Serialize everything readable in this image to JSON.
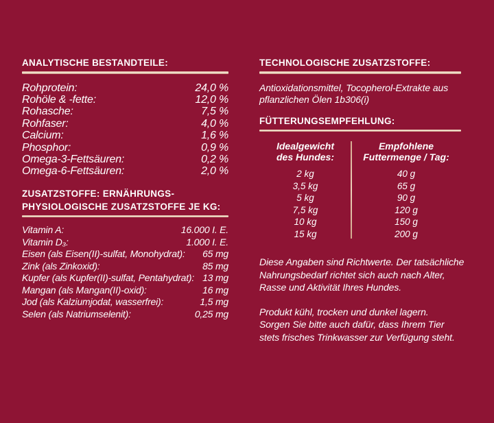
{
  "colors": {
    "background": "#8e1434",
    "text": "#ffffff",
    "rule_gold_light": "#f6ead9",
    "rule_gold_dark": "#bd8875",
    "table_divider": "#e0bda3"
  },
  "analytical": {
    "heading": "ANALYTISCHE BESTANDTEILE:",
    "rows": [
      {
        "label": "Rohprotein:",
        "value": "24,0 %"
      },
      {
        "label": "Rohöle & -fette:",
        "value": "12,0 %"
      },
      {
        "label": "Rohasche:",
        "value": "7,5 %"
      },
      {
        "label": "Rohfaser:",
        "value": "4,0 %"
      },
      {
        "label": "Calcium:",
        "value": "1,6 %"
      },
      {
        "label": "Phosphor:",
        "value": "0,9 %"
      },
      {
        "label": "Omega-3-Fettsäuren:",
        "value": "0,2 %"
      },
      {
        "label": "Omega-6-Fettsäuren:",
        "value": "2,0 %"
      }
    ]
  },
  "additives": {
    "heading_lines": [
      "ZUSATZSTOFFE: ERNÄHRUNGS-",
      "PHYSIOLOGISCHE ZUSATZSTOFFE JE KG:"
    ],
    "rows": [
      {
        "label": "Vitamin A:",
        "value": "16.000 I. E."
      },
      {
        "label": "Vitamin D₃:",
        "value": "1.000 I. E."
      },
      {
        "label": "Eisen (als Eisen(II)-sulfat, Monohydrat):",
        "value": "65 mg"
      },
      {
        "label": "Zink (als Zinkoxid):",
        "value": "85 mg"
      },
      {
        "label": "Kupfer (als Kupfer(II)-sulfat, Pentahydrat):",
        "value": "13 mg"
      },
      {
        "label": "Mangan (als Mangan(II)-oxid):",
        "value": "16 mg"
      },
      {
        "label": "Jod (als Kalziumjodat, wasserfrei):",
        "value": "1,5 mg"
      },
      {
        "label": "Selen (als Natriumselenit):",
        "value": "0,25 mg"
      }
    ]
  },
  "technological": {
    "heading": "TECHNOLOGISCHE ZUSATZSTOFFE:",
    "lines": [
      "Antioxidationsmittel, Tocopherol-Extrakte aus",
      "pflanzlichen Ölen 1b306(i)"
    ]
  },
  "feeding": {
    "heading": "FÜTTERUNGSEMPFEHLUNG:",
    "col1_header_lines": [
      "Idealgewicht",
      "des Hundes:"
    ],
    "col2_header_lines": [
      "Empfohlene",
      "Futtermenge / Tag:"
    ],
    "rows": [
      {
        "weight": "2 kg",
        "amount": "40 g"
      },
      {
        "weight": "3,5 kg",
        "amount": "65 g"
      },
      {
        "weight": "5 kg",
        "amount": "90 g"
      },
      {
        "weight": "7,5 kg",
        "amount": "120 g"
      },
      {
        "weight": "10 kg",
        "amount": "150 g"
      },
      {
        "weight": "15 kg",
        "amount": "200 g"
      }
    ],
    "note_lines": [
      "Diese Angaben sind Richtwerte. Der tatsächliche",
      "Nahrungsbedarf richtet sich auch nach Alter,",
      "Rasse und Aktivität Ihres Hundes."
    ]
  },
  "storage": {
    "lines": [
      "Produkt kühl, trocken und dunkel lagern.",
      "Sorgen Sie bitte auch dafür, dass Ihrem Tier",
      "stets frisches Trinkwasser zur Verfügung steht."
    ]
  }
}
